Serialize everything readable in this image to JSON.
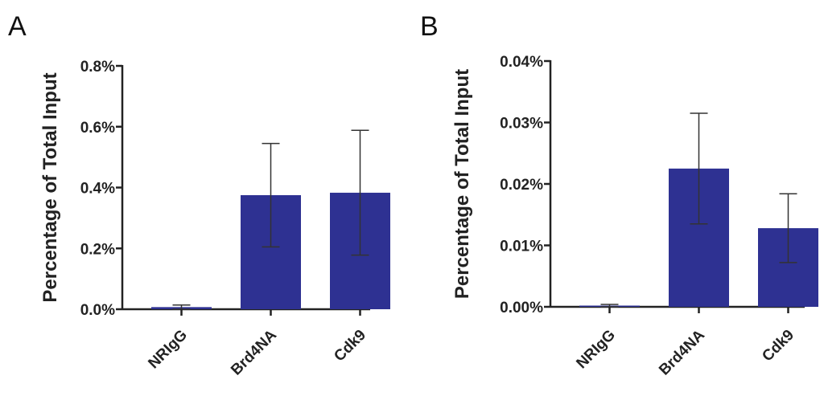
{
  "chart_data": [
    {
      "type": "bar",
      "panel": "A",
      "title": "",
      "xlabel": "",
      "ylabel": "Percentage of Total Input",
      "ylim": [
        0,
        0.8
      ],
      "yticks": [
        0,
        0.2,
        0.4,
        0.6,
        0.8
      ],
      "ytick_labels": [
        "0.0%",
        "0.2%",
        "0.4%",
        "0.6%",
        "0.8%"
      ],
      "categories": [
        "NRIgG",
        "Brd4NA",
        "Cdk9"
      ],
      "values": [
        0.007,
        0.375,
        0.383
      ],
      "errors": [
        0.007,
        0.17,
        0.205
      ],
      "bar_color": "#2e3192",
      "grid": false
    },
    {
      "type": "bar",
      "panel": "B",
      "title": "",
      "xlabel": "",
      "ylabel": "Percentage of Total Input",
      "ylim": [
        0,
        0.04
      ],
      "yticks": [
        0,
        0.01,
        0.02,
        0.03,
        0.04
      ],
      "ytick_labels": [
        "0.00%",
        "0.01%",
        "0.02%",
        "0.03%",
        "0.04%"
      ],
      "categories": [
        "NRIgG",
        "Brd4NA",
        "Cdk9"
      ],
      "values": [
        0.0002,
        0.0225,
        0.0128
      ],
      "errors": [
        0.0002,
        0.009,
        0.0056
      ],
      "bar_color": "#2e3192",
      "grid": false
    }
  ]
}
